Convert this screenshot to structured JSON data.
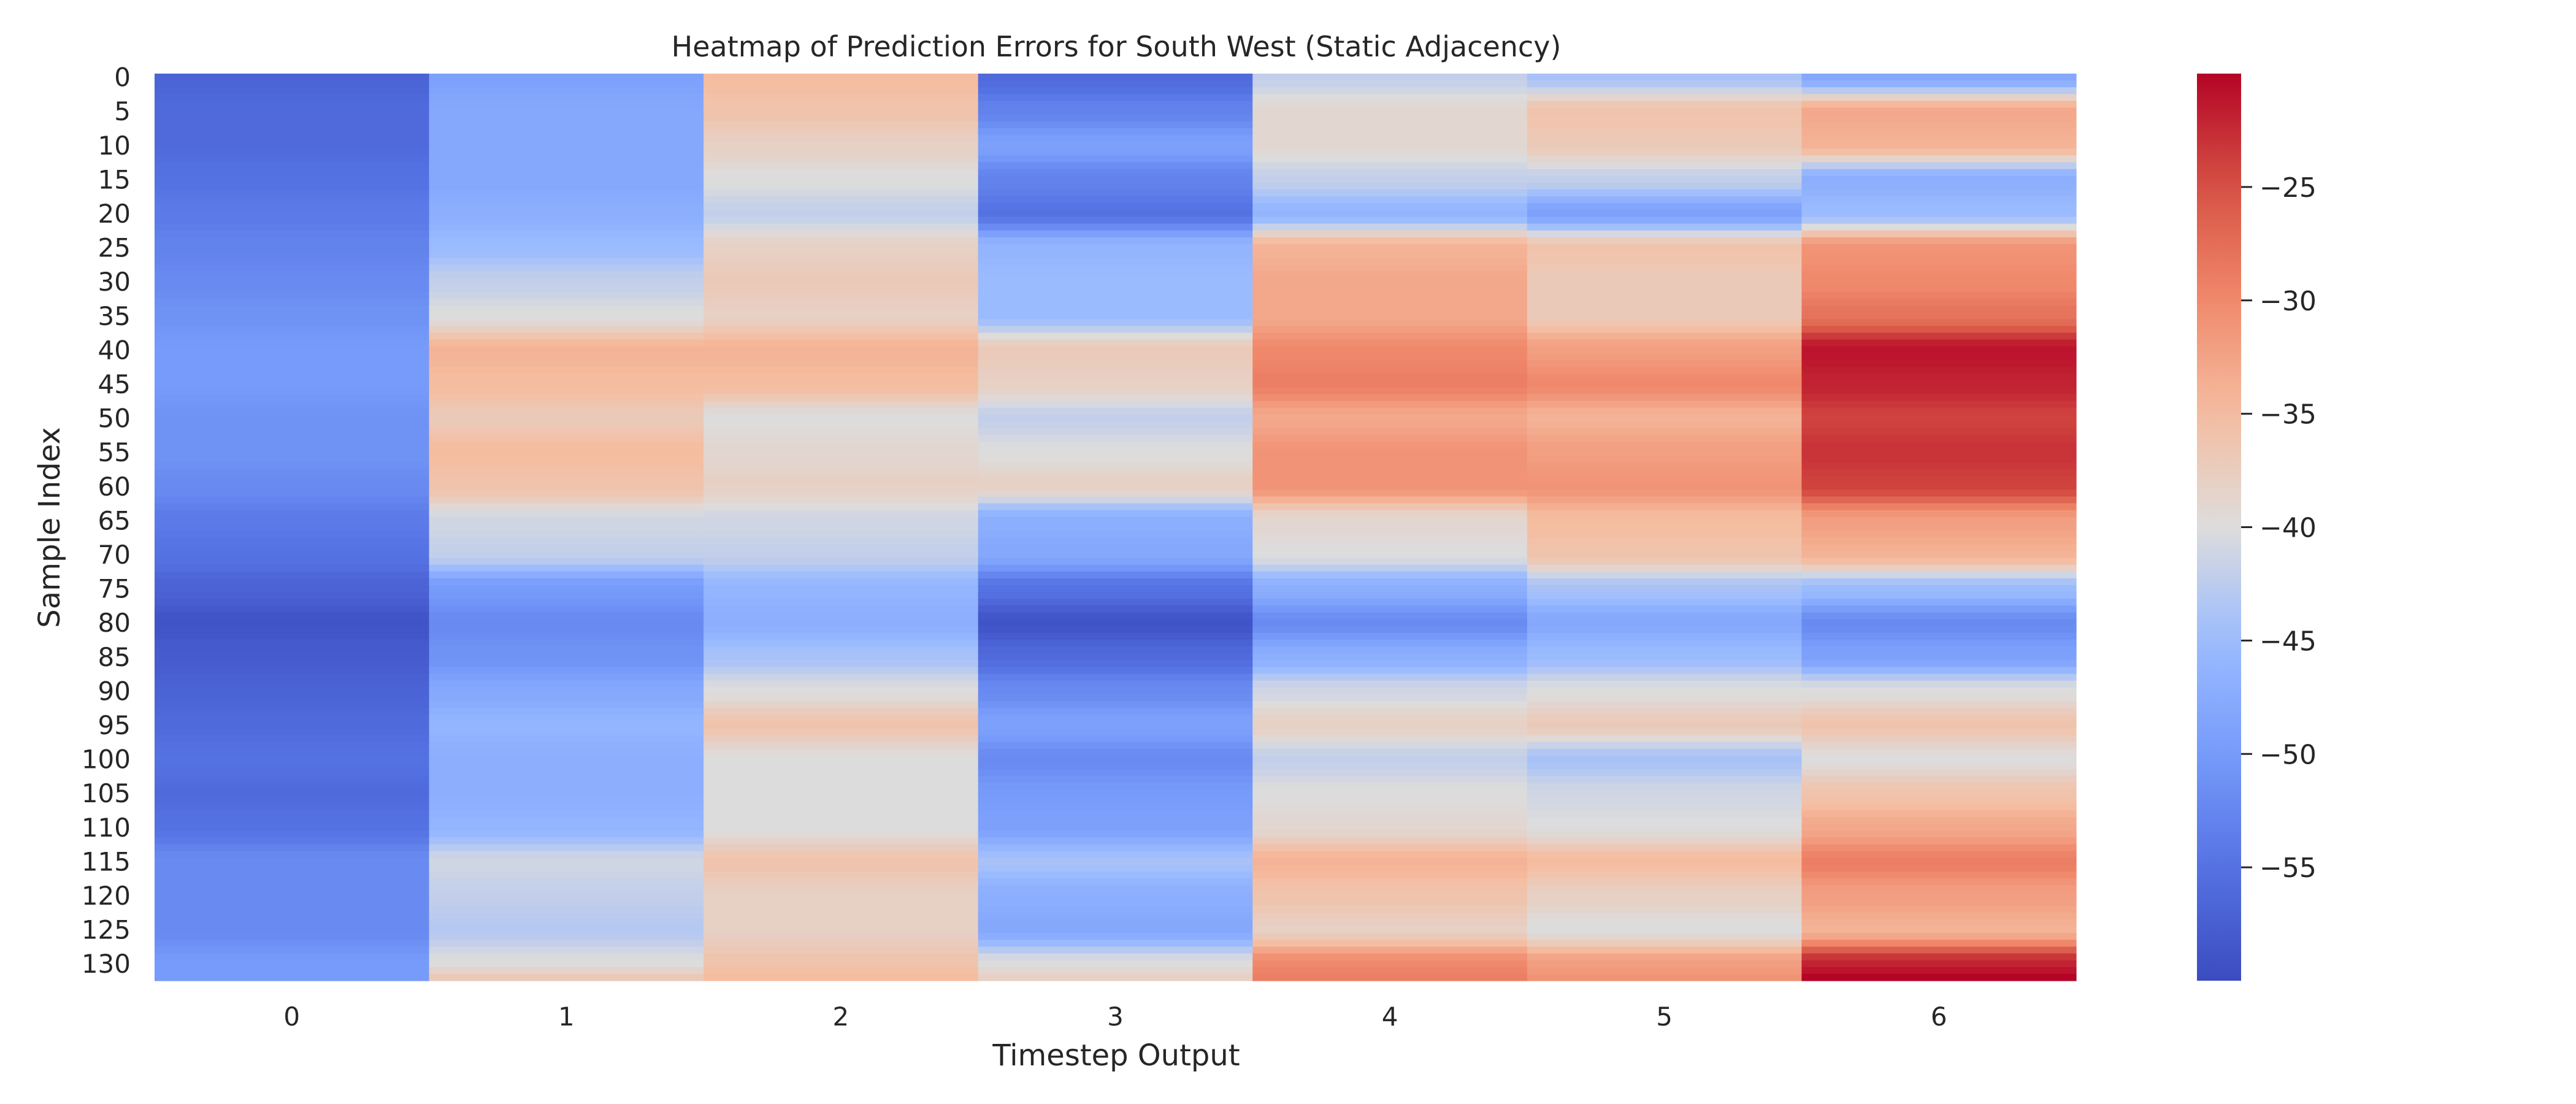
{
  "chart_data": {
    "type": "heatmap",
    "title": "Heatmap of Prediction Errors for South West (Static Adjacency)",
    "xlabel": "Timestep Output",
    "ylabel": "Sample Index",
    "colormap": "coolwarm",
    "colors": {
      "low": "#3b4cc0",
      "mid": "#dddcdc",
      "high": "#b40426"
    },
    "n_rows": 133,
    "x_ticks": [
      "0",
      "1",
      "2",
      "3",
      "4",
      "5",
      "6"
    ],
    "y_ticks": [
      "0",
      "5",
      "10",
      "15",
      "20",
      "25",
      "30",
      "35",
      "40",
      "45",
      "50",
      "55",
      "60",
      "65",
      "70",
      "75",
      "80",
      "85",
      "90",
      "95",
      "100",
      "105",
      "110",
      "115",
      "120",
      "125",
      "130"
    ],
    "colorbar": {
      "vmin": -60,
      "vmax": -20,
      "ticks": [
        -55,
        -50,
        -45,
        -40,
        -35,
        -30,
        -25
      ],
      "tick_labels": [
        "−55",
        "−50",
        "−45",
        "−40",
        "−35",
        "−30",
        "−25"
      ]
    },
    "profile_rows": [
      0,
      5,
      10,
      15,
      20,
      25,
      30,
      35,
      40,
      45,
      50,
      55,
      60,
      65,
      70,
      75,
      80,
      85,
      90,
      95,
      100,
      105,
      110,
      115,
      120,
      125,
      130,
      132
    ],
    "profile_values": [
      [
        -57,
        -49,
        -35,
        -56,
        -42,
        -44,
        -48
      ],
      [
        -56,
        -48,
        -36,
        -53,
        -39,
        -36,
        -33
      ],
      [
        -56,
        -48,
        -38,
        -49,
        -39,
        -37,
        -34
      ],
      [
        -55,
        -48,
        -40,
        -53,
        -42,
        -42,
        -47
      ],
      [
        -54,
        -47,
        -42,
        -55,
        -46,
        -49,
        -45
      ],
      [
        -53,
        -45,
        -38,
        -46,
        -34,
        -36,
        -31
      ],
      [
        -52,
        -42,
        -37,
        -45,
        -33,
        -37,
        -30
      ],
      [
        -51,
        -40,
        -38,
        -45,
        -33,
        -37,
        -28
      ],
      [
        -50,
        -34,
        -34,
        -37,
        -30,
        -32,
        -21
      ],
      [
        -50,
        -35,
        -35,
        -38,
        -29,
        -30,
        -22
      ],
      [
        -51,
        -37,
        -40,
        -42,
        -33,
        -34,
        -24
      ],
      [
        -51,
        -35,
        -39,
        -40,
        -31,
        -32,
        -23
      ],
      [
        -52,
        -36,
        -38,
        -38,
        -31,
        -31,
        -24
      ],
      [
        -54,
        -41,
        -41,
        -47,
        -39,
        -35,
        -32
      ],
      [
        -55,
        -42,
        -42,
        -48,
        -40,
        -36,
        -34
      ],
      [
        -57,
        -50,
        -46,
        -55,
        -47,
        -44,
        -45
      ],
      [
        -59,
        -52,
        -47,
        -59,
        -52,
        -48,
        -52
      ],
      [
        -58,
        -51,
        -44,
        -56,
        -47,
        -45,
        -49
      ],
      [
        -57,
        -48,
        -40,
        -52,
        -41,
        -40,
        -40
      ],
      [
        -56,
        -46,
        -36,
        -49,
        -38,
        -37,
        -36
      ],
      [
        -55,
        -47,
        -40,
        -52,
        -42,
        -44,
        -40
      ],
      [
        -56,
        -47,
        -40,
        -50,
        -40,
        -41,
        -36
      ],
      [
        -55,
        -46,
        -40,
        -49,
        -39,
        -40,
        -33
      ],
      [
        -52,
        -41,
        -36,
        -44,
        -34,
        -35,
        -29
      ],
      [
        -52,
        -42,
        -38,
        -47,
        -36,
        -38,
        -32
      ],
      [
        -52,
        -43,
        -38,
        -48,
        -38,
        -40,
        -34
      ],
      [
        -50,
        -40,
        -36,
        -40,
        -30,
        -32,
        -22
      ],
      [
        -50,
        -37,
        -35,
        -38,
        -29,
        -31,
        -20
      ]
    ]
  }
}
